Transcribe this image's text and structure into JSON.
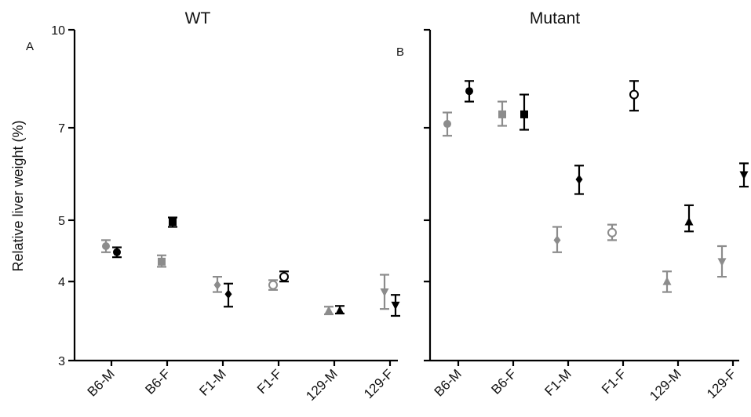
{
  "ylabel": "Relative liver weight (%)",
  "colors": {
    "gray": "#8c8c8c",
    "black": "#000000"
  },
  "chart_data": [
    {
      "type": "scatter",
      "title": "WT",
      "panel_label": "A",
      "ylabel": "Relative liver weight (%)",
      "yscale": "log",
      "ylim": [
        3,
        10
      ],
      "yticks": [
        3,
        4,
        5,
        7,
        10
      ],
      "categories": [
        "B6-M",
        "B6-F",
        "F1-M",
        "F1-F",
        "129-M",
        "129-F"
      ],
      "series": [
        {
          "color": "gray",
          "markers": [
            "circle",
            "square",
            "diamond",
            "circle-open",
            "triangle-up",
            "triangle-down"
          ],
          "values": [
            4.55,
            4.3,
            3.95,
            3.95,
            3.6,
            3.85
          ],
          "err_low": [
            4.45,
            4.22,
            3.85,
            3.88,
            3.55,
            3.62
          ],
          "err_high": [
            4.65,
            4.4,
            4.07,
            4.02,
            3.65,
            4.1
          ]
        },
        {
          "color": "black",
          "markers": [
            "circle",
            "square",
            "diamond",
            "circle-open",
            "triangle-up",
            "triangle-down"
          ],
          "values": [
            4.45,
            4.97,
            3.82,
            4.07,
            3.6,
            3.67
          ],
          "err_low": [
            4.37,
            4.88,
            3.65,
            4.0,
            3.56,
            3.53
          ],
          "err_high": [
            4.53,
            5.05,
            3.97,
            4.15,
            3.66,
            3.81
          ]
        }
      ]
    },
    {
      "type": "scatter",
      "title": "Mutant",
      "panel_label": "B",
      "yscale": "log",
      "ylim": [
        3,
        10
      ],
      "yticks": [
        3,
        4,
        5,
        7,
        10
      ],
      "categories": [
        "B6-M",
        "B6-F",
        "F1-M",
        "F1-F",
        "129-M",
        "129-F"
      ],
      "series": [
        {
          "color": "gray",
          "markers": [
            "circle",
            "square",
            "diamond",
            "circle-open",
            "triangle-up",
            "triangle-down"
          ],
          "values": [
            7.1,
            7.35,
            4.65,
            4.78,
            4.0,
            4.3
          ],
          "err_low": [
            6.8,
            7.05,
            4.45,
            4.65,
            3.85,
            4.07
          ],
          "err_high": [
            7.4,
            7.7,
            4.88,
            4.92,
            4.15,
            4.55
          ]
        },
        {
          "color": "black",
          "markers": [
            "circle",
            "square",
            "diamond",
            "circle-open",
            "triangle-up",
            "triangle-down"
          ],
          "values": [
            8.0,
            7.35,
            5.8,
            7.9,
            4.97,
            5.9
          ],
          "err_low": [
            7.7,
            6.95,
            5.5,
            7.45,
            4.8,
            5.65
          ],
          "err_high": [
            8.3,
            7.9,
            6.1,
            8.3,
            5.28,
            6.15
          ]
        }
      ]
    }
  ]
}
